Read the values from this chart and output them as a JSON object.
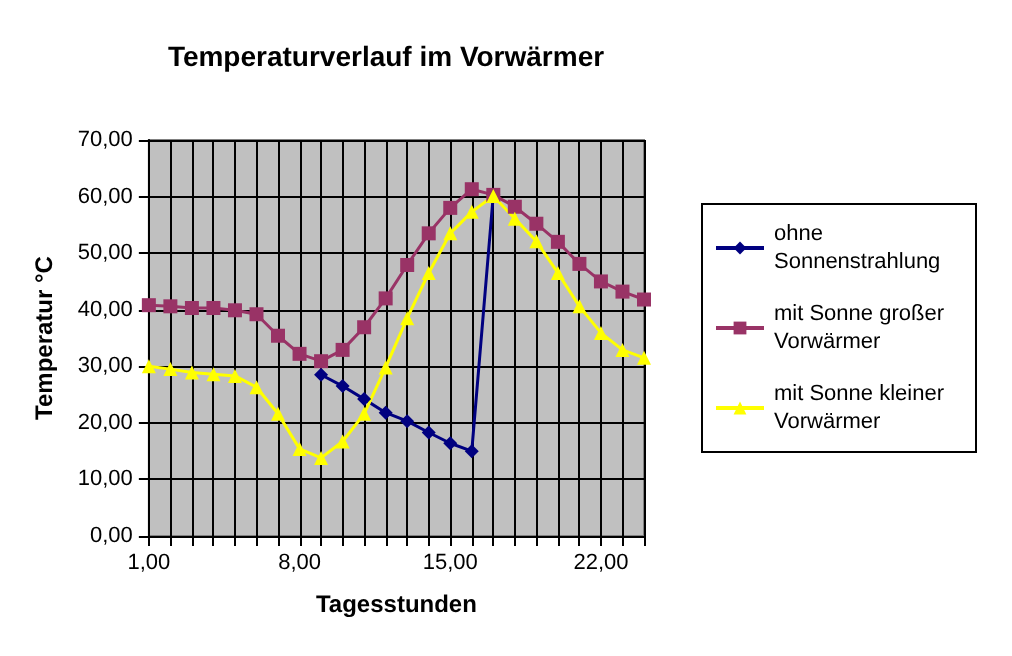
{
  "chart_data": {
    "type": "line",
    "title": "Temperaturverlauf im Vorwärmer",
    "xlabel": "Tagesstunden",
    "ylabel": "Temperatur °C",
    "categories": [
      "1,00",
      null,
      null,
      null,
      null,
      null,
      null,
      "8,00",
      null,
      null,
      null,
      null,
      null,
      null,
      "15,00",
      null,
      null,
      null,
      null,
      null,
      null,
      "22,00",
      null,
      null
    ],
    "series": [
      {
        "name": "ohne Sonnenstrahlung",
        "color": "#000080",
        "marker": "diamond",
        "values": [
          null,
          null,
          null,
          null,
          null,
          null,
          null,
          null,
          28.5,
          26.5,
          24.2,
          21.8,
          20.3,
          18.3,
          16.4,
          15.0,
          60.3,
          null,
          null,
          null,
          null,
          null,
          null,
          null
        ]
      },
      {
        "name": "mit Sonne großer Vorwärmer",
        "color": "#993366",
        "marker": "square",
        "values": [
          40.8,
          40.6,
          40.3,
          40.3,
          39.9,
          39.2,
          35.4,
          32.2,
          30.9,
          32.9,
          36.9,
          42.0,
          47.9,
          53.5,
          58.0,
          61.3,
          60.3,
          58.2,
          55.2,
          52.0,
          48.1,
          45.0,
          43.2,
          41.8
        ]
      },
      {
        "name": "mit Sonne kleiner Vorwärmer",
        "color": "#ffff00",
        "marker": "triangle",
        "values": [
          30.0,
          29.5,
          28.9,
          28.6,
          28.3,
          26.3,
          21.6,
          15.4,
          13.8,
          16.7,
          21.6,
          29.8,
          38.5,
          46.5,
          53.5,
          57.3,
          60.1,
          56.1,
          52.1,
          46.5,
          40.6,
          35.9,
          32.9,
          31.5
        ]
      }
    ],
    "ylim": [
      0,
      70
    ],
    "yticks": [
      {
        "value": 0,
        "label": "0,00"
      },
      {
        "value": 10,
        "label": "10,00"
      },
      {
        "value": 20,
        "label": "20,00"
      },
      {
        "value": 30,
        "label": "30,00"
      },
      {
        "value": 40,
        "label": "40,00"
      },
      {
        "value": 50,
        "label": "50,00"
      },
      {
        "value": 60,
        "label": "60,00"
      },
      {
        "value": 70,
        "label": "70,00"
      }
    ],
    "grid": true,
    "legend": "right"
  }
}
